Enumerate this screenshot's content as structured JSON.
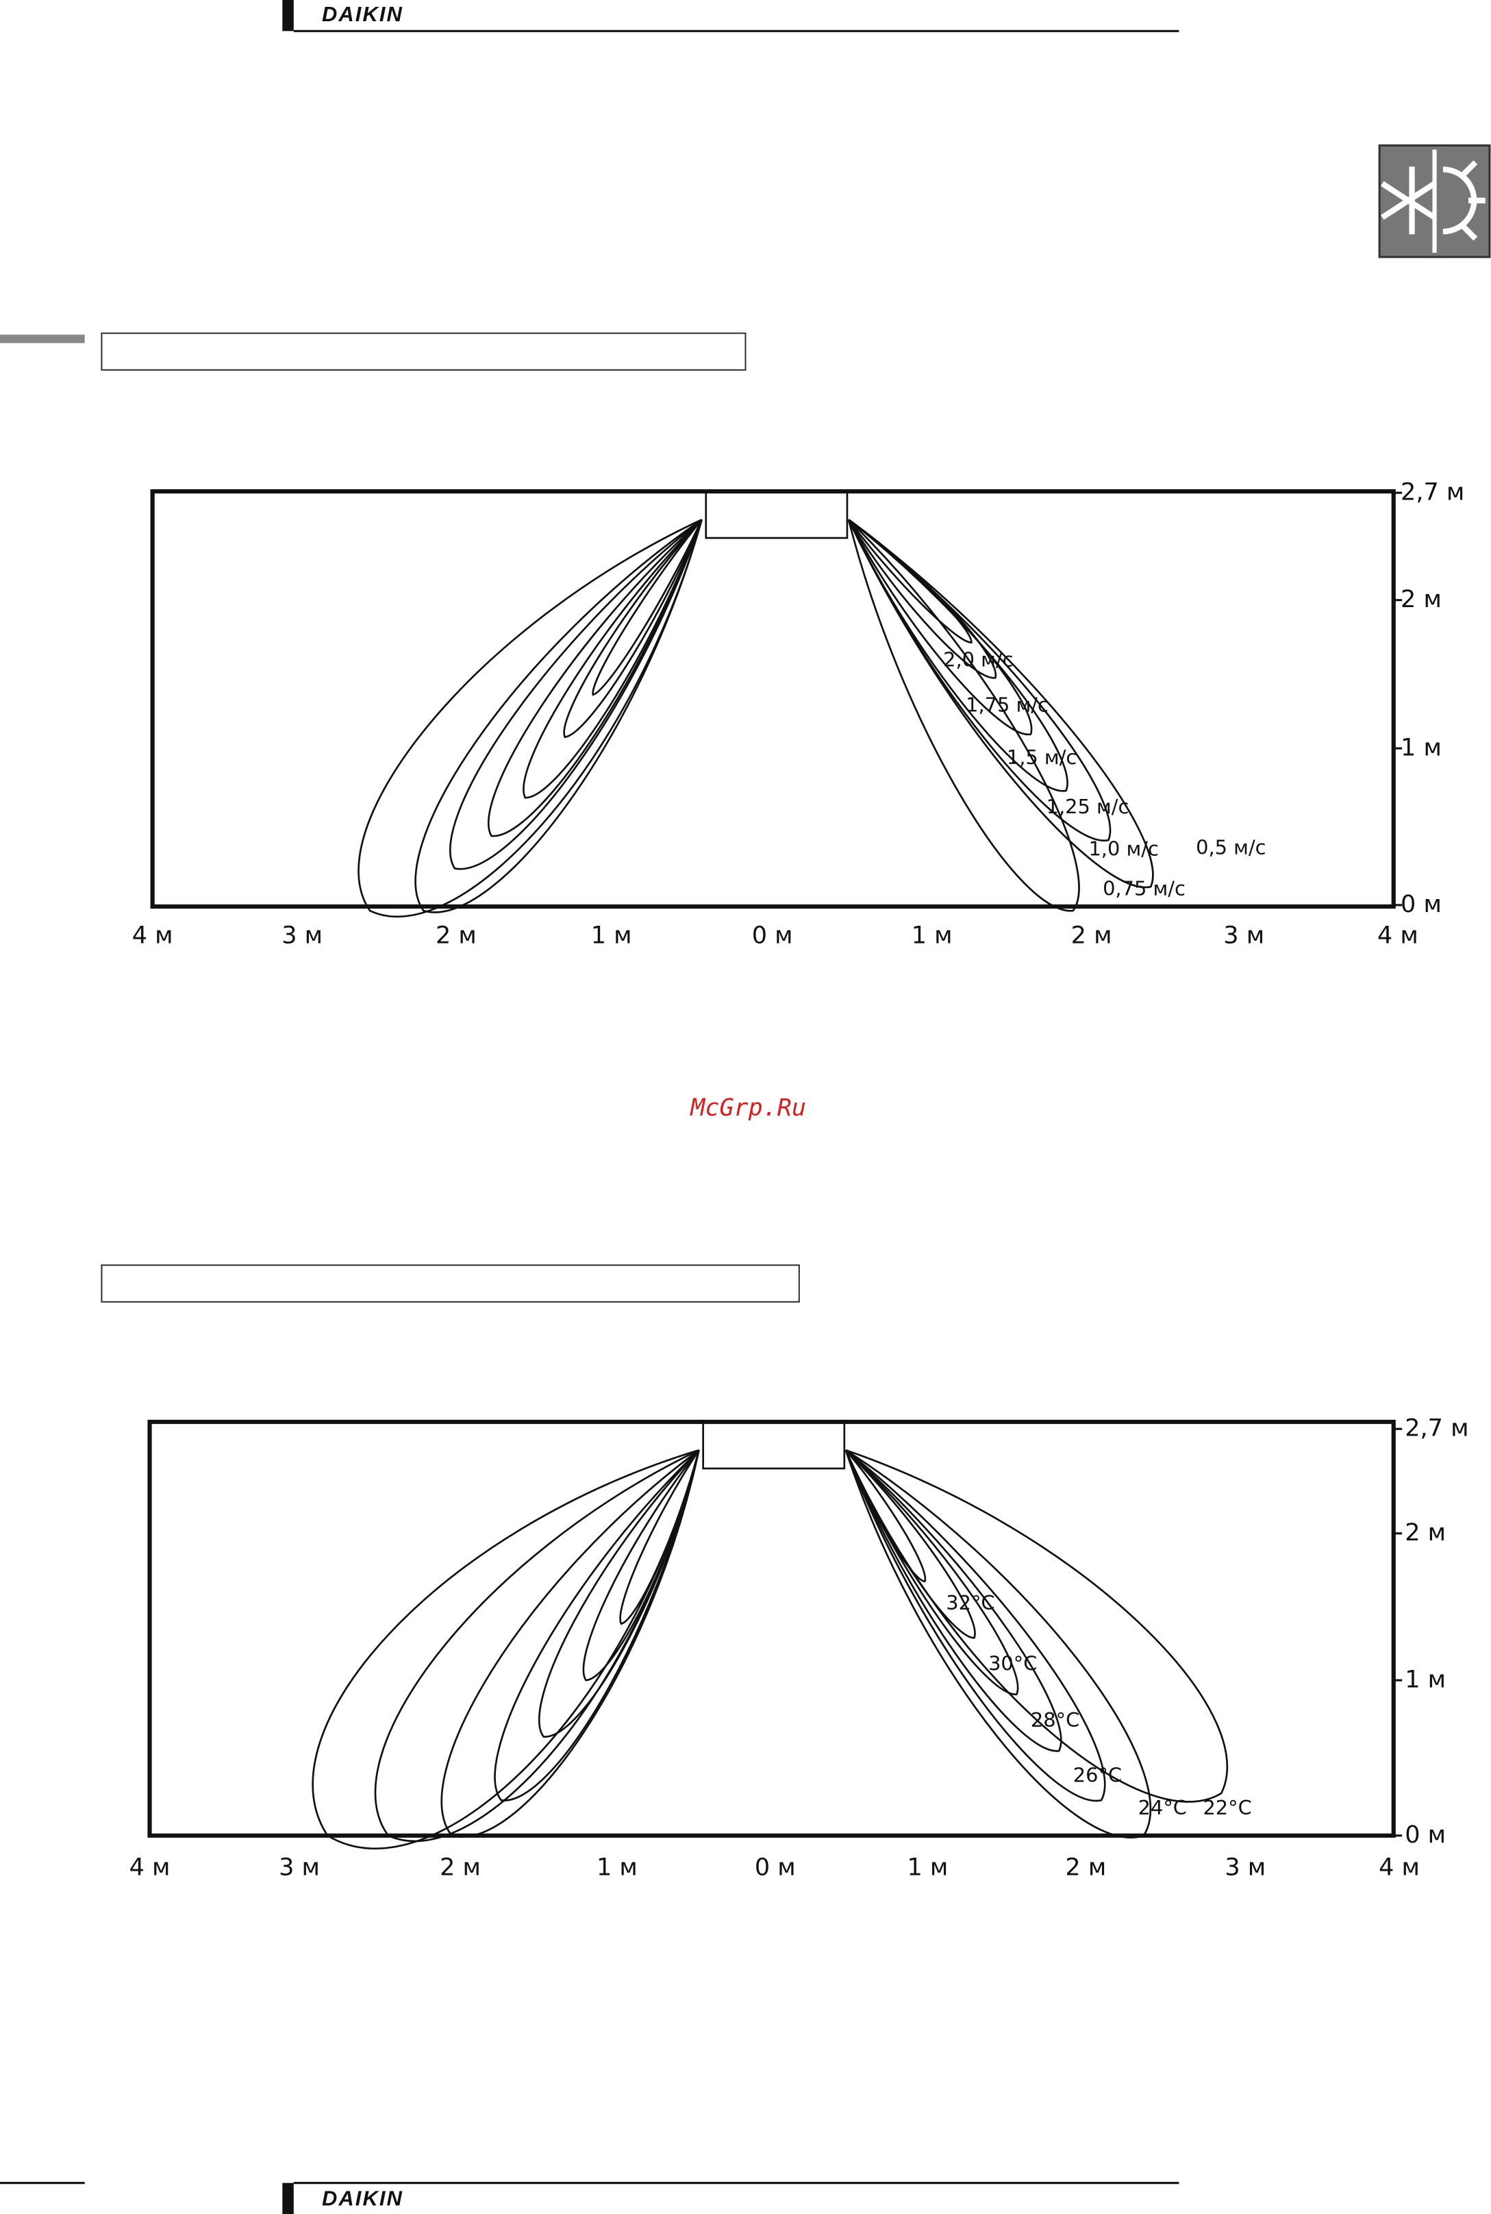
{
  "header": {
    "brand": "DAIKIN"
  },
  "watermark": "McGrp.Ru",
  "diagrams": [
    {
      "x_labels": [
        "4 м",
        "3 м",
        "2 м",
        "1 м",
        "0 м",
        "1 м",
        "2 м",
        "3 м",
        "4 м"
      ],
      "y_labels": [
        "2,7 м",
        "2 м",
        "1 м",
        "0 м"
      ],
      "contour_labels": [
        "2,0 м/с",
        "1,75 м/с",
        "1,5 м/с",
        "1,25 м/с",
        "1,0 м/с",
        "0,5 м/с",
        "0,75 м/с"
      ]
    },
    {
      "x_labels": [
        "4 м",
        "3 м",
        "2 м",
        "1 м",
        "0 м",
        "1 м",
        "2 м",
        "3 м",
        "4 м"
      ],
      "y_labels": [
        "2,7 м",
        "2 м",
        "1 м",
        "0 м"
      ],
      "contour_labels": [
        "32°C",
        "30°C",
        "28°C",
        "26°C",
        "24°C",
        "22°C"
      ]
    }
  ],
  "footer": {
    "brand": "DAIKIN"
  }
}
